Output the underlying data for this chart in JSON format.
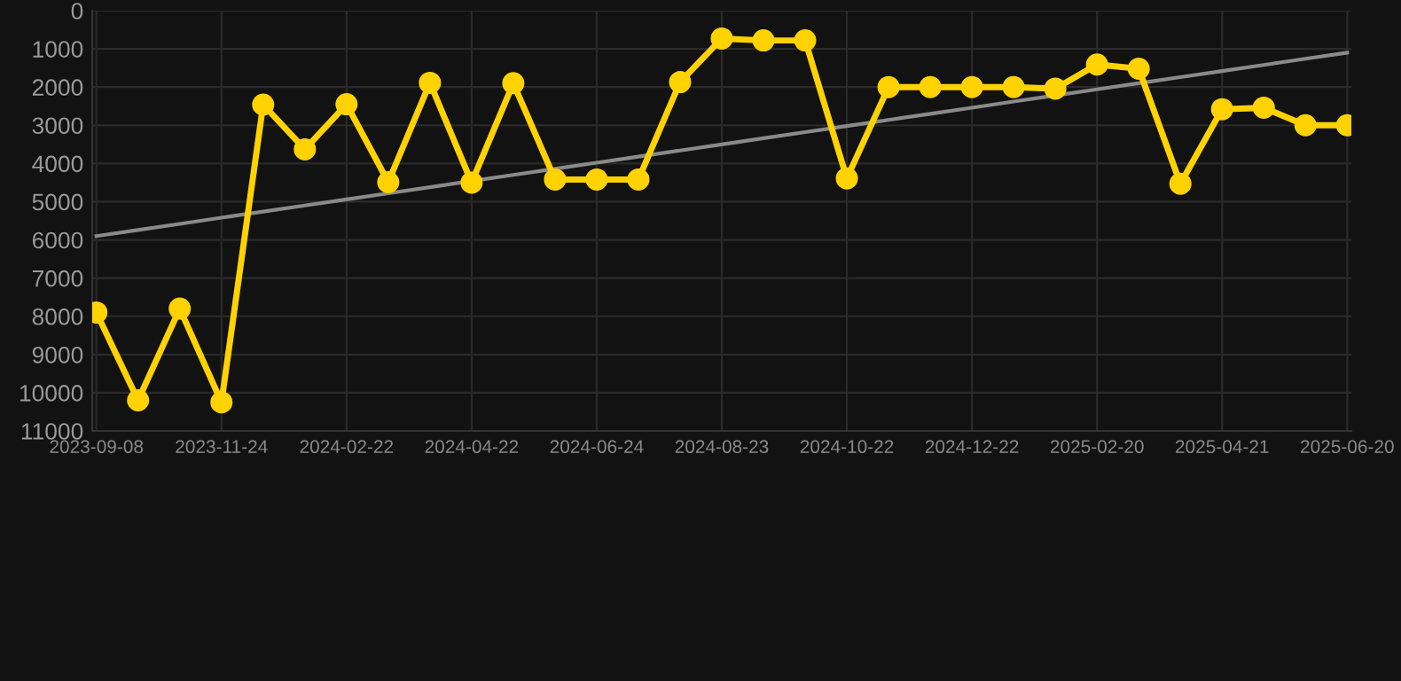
{
  "chart_data": {
    "type": "line",
    "categories": [
      "2023-09-08",
      null,
      null,
      "2023-11-24",
      null,
      null,
      "2024-02-22",
      null,
      null,
      "2024-04-22",
      null,
      null,
      "2024-06-24",
      null,
      null,
      "2024-08-23",
      null,
      null,
      "2024-10-22",
      null,
      null,
      "2024-12-22",
      null,
      null,
      "2025-02-20",
      null,
      null,
      "2025-04-21",
      null,
      null,
      "2025-06-20"
    ],
    "series": [
      {
        "color": "#ffd200",
        "marker": "circle",
        "values": [
          7900,
          10200,
          7800,
          10250,
          2460,
          3630,
          2450,
          4490,
          1890,
          4500,
          1900,
          4420,
          4420,
          4420,
          1870,
          730,
          780,
          780,
          4390,
          2000,
          2000,
          2000,
          2000,
          2040,
          1410,
          1520,
          4530,
          2580,
          2540,
          3000,
          3000
        ]
      },
      {
        "type": "line",
        "color": "#8a8a8a",
        "marker": "none",
        "values": [
          5900,
          5740,
          5580,
          5420,
          5260,
          5100,
          4940,
          4780,
          4620,
          4460,
          4300,
          4140,
          3980,
          3820,
          3660,
          3500,
          3340,
          3180,
          3020,
          2860,
          2700,
          2540,
          2380,
          2220,
          2060,
          1900,
          1740,
          1580,
          1420,
          1260,
          1100
        ]
      }
    ],
    "ylim": [
      11000,
      0
    ],
    "yticks": [
      0,
      1000,
      2000,
      3000,
      4000,
      5000,
      6000,
      7000,
      8000,
      9000,
      10000,
      11000
    ],
    "grid": true
  }
}
